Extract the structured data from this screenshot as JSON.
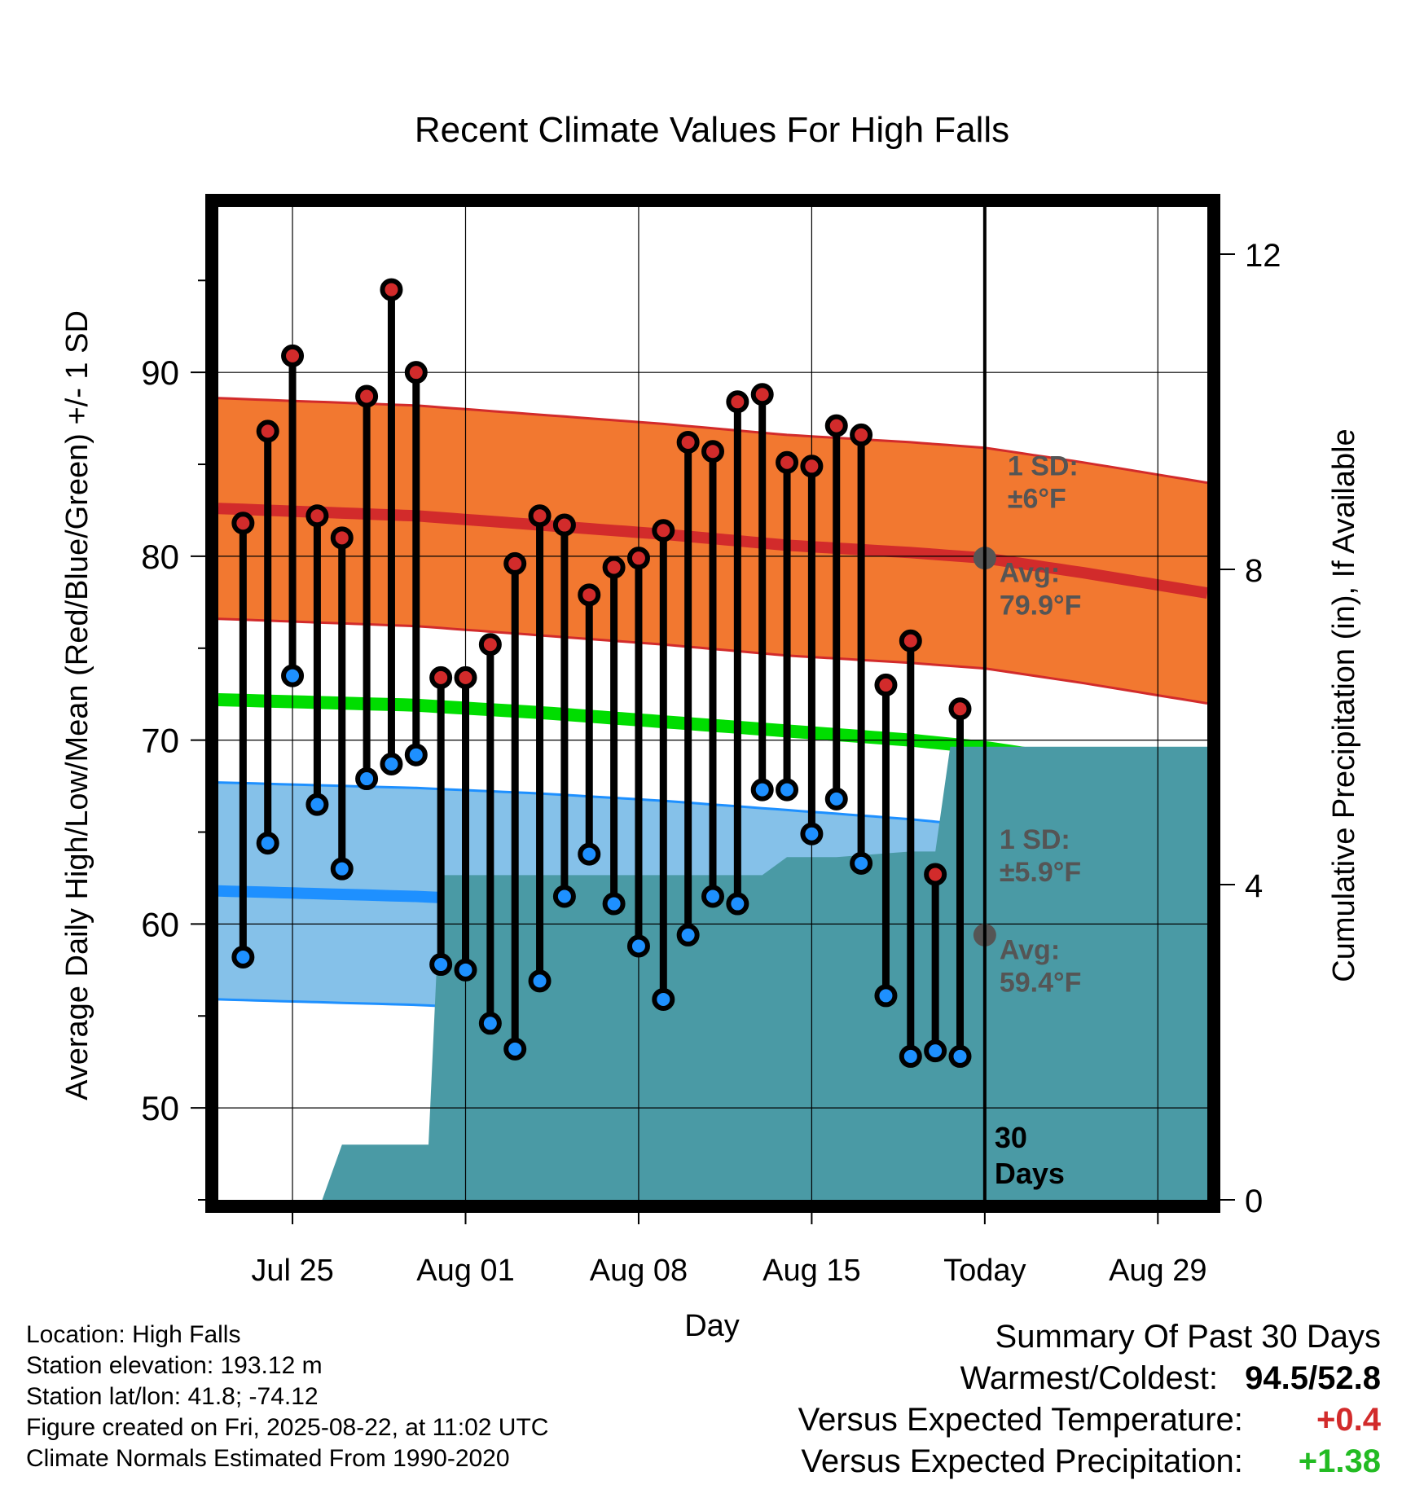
{
  "chart_data": {
    "type": "line",
    "title": "Recent Climate Values For High Falls",
    "xlabel": "Day",
    "ylabel": "Average Daily High/Low/Mean (Red/Blue/Green) +/- 1 SD",
    "ylabel_right": "Cumulative Precipitation (in), If Available",
    "x_tick_labels": [
      "Jul 25",
      "Aug 01",
      "Aug 08",
      "Aug 15",
      "Today",
      "Aug 29"
    ],
    "x_tick_days": [
      0,
      7,
      14,
      21,
      28,
      35
    ],
    "xlim_days": [
      -3,
      37
    ],
    "y_ticks": [
      50,
      60,
      70,
      80,
      90
    ],
    "ylim": [
      45,
      99
    ],
    "y2_ticks": [
      0,
      4,
      8,
      12
    ],
    "y2lim": [
      0,
      12.6
    ],
    "grid": true,
    "today_marker": {
      "day": 28,
      "label": "30\nDays"
    },
    "normals": {
      "days": [
        -3,
        5,
        10,
        15,
        20,
        25,
        28,
        32,
        37
      ],
      "high_mean": [
        82.6,
        82.2,
        81.7,
        81.2,
        80.6,
        80.2,
        79.9,
        79.1,
        78.0
      ],
      "high_sd": 6,
      "low_mean": [
        61.8,
        61.5,
        61.2,
        60.8,
        60.3,
        59.8,
        59.4,
        58.5,
        57.5
      ],
      "low_sd": 5.9,
      "daily_mean": [
        72.2,
        71.9,
        71.5,
        71.0,
        70.5,
        70.0,
        69.6,
        68.8,
        67.7
      ]
    },
    "series": [
      {
        "name": "High",
        "color": "#d22b2b",
        "days": [
          -2,
          -1,
          0,
          1,
          2,
          3,
          4,
          5,
          6,
          7,
          8,
          9,
          10,
          11,
          12,
          13,
          14,
          15,
          16,
          17,
          18,
          19,
          20,
          21,
          22,
          23,
          24,
          25,
          26,
          27
        ],
        "values": [
          81.8,
          86.8,
          90.9,
          82.2,
          81.0,
          88.7,
          94.5,
          90.0,
          73.4,
          73.4,
          75.2,
          79.6,
          82.2,
          81.7,
          77.9,
          79.4,
          79.9,
          81.4,
          86.2,
          85.7,
          88.4,
          88.8,
          85.1,
          84.9,
          87.1,
          86.6,
          73.0,
          75.4,
          62.7,
          71.7
        ]
      },
      {
        "name": "Low",
        "color": "#1e90ff",
        "days": [
          -2,
          -1,
          0,
          1,
          2,
          3,
          4,
          5,
          6,
          7,
          8,
          9,
          10,
          11,
          12,
          13,
          14,
          15,
          16,
          17,
          18,
          19,
          20,
          21,
          22,
          23,
          24,
          25,
          26,
          27
        ],
        "values": [
          58.2,
          64.4,
          73.5,
          66.5,
          63.0,
          67.9,
          68.7,
          69.2,
          57.8,
          57.5,
          54.6,
          53.2,
          56.9,
          61.5,
          63.8,
          61.1,
          58.8,
          55.9,
          59.4,
          61.5,
          61.1,
          67.3,
          67.3,
          64.9,
          66.8,
          63.3,
          56.1,
          52.8,
          53.1,
          52.8
        ]
      },
      {
        "name": "Cumulative Precipitation",
        "color": "#4a9aa5",
        "days": [
          -3,
          1.2,
          2,
          5,
          5.5,
          6,
          8,
          12,
          17,
          19,
          20,
          22,
          25,
          26,
          26.6,
          37
        ],
        "values": [
          0,
          0,
          0.7,
          0.7,
          0.7,
          4.12,
          4.12,
          4.12,
          4.12,
          4.12,
          4.35,
          4.35,
          4.42,
          4.42,
          5.75,
          5.75
        ]
      }
    ],
    "annotations": {
      "high_sd_label": "1 SD:\n±6°F",
      "high_avg_label": "Avg:\n79.9°F",
      "low_sd_label": "1 SD:\n±5.9°F",
      "low_avg_label": "Avg:\n59.4°F"
    }
  },
  "info": {
    "location": "Location: High Falls",
    "elevation": "Station elevation: 193.12 m",
    "latlon": "Station lat/lon: 41.8; -74.12",
    "created": "Figure created on Fri, 2025-08-22, at 11:02 UTC",
    "normals": "Climate Normals Estimated From 1990-2020"
  },
  "summary": {
    "title": "Summary Of Past 30 Days",
    "warm_cold_label": "Warmest/Coldest:",
    "warmest": "94.5",
    "coldest": "52.8",
    "temp_label": "Versus Expected Temperature:",
    "temp_value": "+0.4",
    "temp_color": "#d22b2b",
    "precip_label": "Versus Expected Precipitation:",
    "precip_value": "+1.38",
    "precip_color": "#22bb22"
  },
  "colors": {
    "high_band": "#f27830",
    "high_line": "#d22b2b",
    "low_band": "#85c1e9",
    "low_line": "#1e90ff",
    "mean_line": "#00dd00",
    "precip": "#4a9aa5",
    "annotation_text": "#555555"
  }
}
